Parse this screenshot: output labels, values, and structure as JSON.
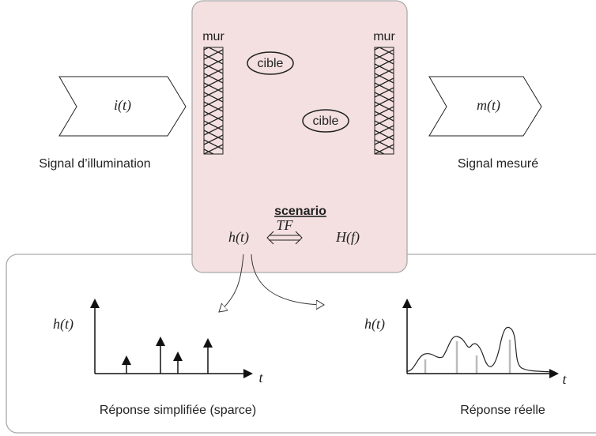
{
  "left_signal": {
    "label": "i(t)",
    "caption": "Signal d’illumination"
  },
  "right_signal": {
    "label": "m(t)",
    "caption": "Signal mesuré"
  },
  "scenario": {
    "walls": [
      "mur",
      "mur"
    ],
    "targets": [
      "cible",
      "cible"
    ],
    "title": "scenario",
    "formula": {
      "left": "h(t)",
      "transform": "TF",
      "right": "H(f)"
    }
  },
  "plots": [
    {
      "y_label": "h(t)",
      "x_label": "t",
      "caption": "Réponse simplifiée (sparce)"
    },
    {
      "y_label": "h(t)",
      "x_label": "t",
      "caption": "Réponse réelle"
    }
  ]
}
